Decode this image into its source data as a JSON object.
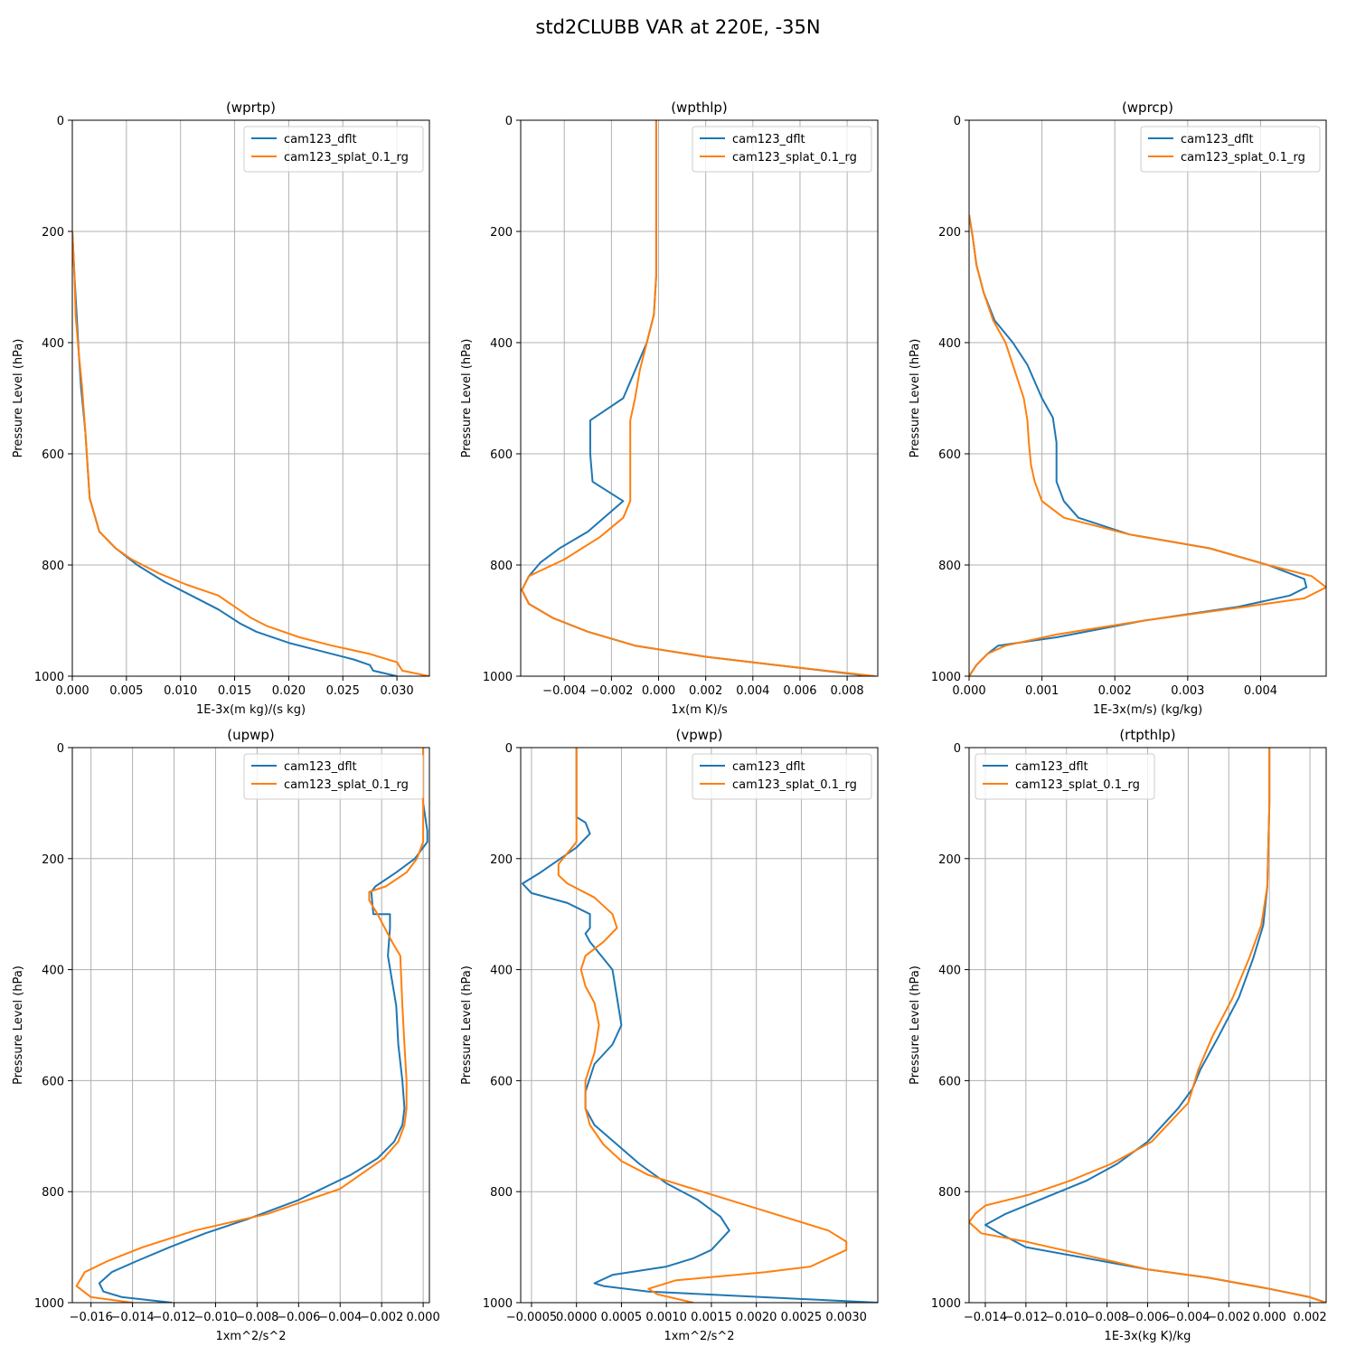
{
  "figure": {
    "title": "std2CLUBB VAR at 220E, -35N"
  },
  "series_colors": {
    "cam123_dflt": "#1f77b4",
    "cam123_splat_0.1_rg": "#ff7f0e"
  },
  "chart_data": [
    {
      "type": "line",
      "title": "(wprtp)",
      "xlabel": "1E-3x(m kg)/(s kg)",
      "ylabel": "Pressure Level (hPa)",
      "xlim": [
        0.0,
        0.033
      ],
      "ylim": [
        1000,
        0
      ],
      "xticks": [
        0.0,
        0.005,
        0.01,
        0.015,
        0.02,
        0.025,
        0.03
      ],
      "xtick_labels": [
        "0.000",
        "0.005",
        "0.010",
        "0.015",
        "0.020",
        "0.025",
        "0.030"
      ],
      "yticks": [
        0,
        200,
        400,
        600,
        800,
        1000
      ],
      "ytick_labels": [
        "0",
        "200",
        "400",
        "600",
        "800",
        "1000"
      ],
      "grid": true,
      "legend": "upper right",
      "series": [
        {
          "name": "cam123_dflt",
          "color": "#1f77b4",
          "x": [
            0.0,
            0.0002,
            0.0004,
            0.0006,
            0.0008,
            0.0012,
            0.0014,
            0.0016,
            0.0025,
            0.004,
            0.006,
            0.0085,
            0.011,
            0.0135,
            0.0155,
            0.017,
            0.02,
            0.023,
            0.026,
            0.0275,
            0.0278,
            0.03
          ],
          "y": [
            200,
            280,
            350,
            420,
            480,
            560,
            620,
            680,
            740,
            770,
            800,
            830,
            855,
            880,
            905,
            920,
            940,
            955,
            970,
            980,
            990,
            1000
          ]
        },
        {
          "name": "cam123_splat_0.1_rg",
          "color": "#ff7f0e",
          "x": [
            0.0,
            0.0002,
            0.0003,
            0.0006,
            0.0009,
            0.0012,
            0.0014,
            0.0016,
            0.0025,
            0.004,
            0.0055,
            0.008,
            0.0105,
            0.0135,
            0.015,
            0.0165,
            0.018,
            0.021,
            0.024,
            0.0275,
            0.03,
            0.0305,
            0.033
          ],
          "y": [
            200,
            280,
            350,
            420,
            480,
            560,
            620,
            680,
            740,
            770,
            790,
            815,
            835,
            855,
            875,
            895,
            910,
            930,
            945,
            960,
            975,
            990,
            1000
          ]
        }
      ]
    },
    {
      "type": "line",
      "title": "(wpthlp)",
      "xlabel": "1x(m K)/s",
      "ylabel": "Pressure Level (hPa)",
      "xlim": [
        -0.00585,
        0.0093
      ],
      "ylim": [
        1000,
        0
      ],
      "xticks": [
        -0.004,
        -0.002,
        0.0,
        0.002,
        0.004,
        0.006,
        0.008
      ],
      "xtick_labels": [
        "−0.004",
        "−0.002",
        "0.000",
        "0.002",
        "0.004",
        "0.006",
        "0.008"
      ],
      "yticks": [
        0,
        200,
        400,
        600,
        800,
        1000
      ],
      "ytick_labels": [
        "0",
        "200",
        "400",
        "600",
        "800",
        "1000"
      ],
      "grid": true,
      "legend": "upper right",
      "series": [
        {
          "name": "cam123_dflt",
          "color": "#1f77b4",
          "x": [
            -0.0001,
            -0.0001,
            -0.0001,
            -0.0001,
            -0.0002,
            -0.0005,
            -0.001,
            -0.0015,
            -0.0029,
            -0.0029,
            -0.0028,
            -0.0015,
            -0.003,
            -0.0042,
            -0.005,
            -0.0055,
            -0.0058,
            -0.0055,
            -0.0045,
            -0.003,
            -0.001,
            0.002,
            0.005,
            0.009
          ],
          "y": [
            0,
            100,
            200,
            280,
            350,
            400,
            450,
            500,
            540,
            600,
            650,
            685,
            740,
            770,
            795,
            820,
            845,
            870,
            895,
            920,
            945,
            965,
            980,
            1000
          ]
        },
        {
          "name": "cam123_splat_0.1_rg",
          "color": "#ff7f0e",
          "x": [
            -0.0001,
            -0.0001,
            -0.0001,
            -0.0001,
            -0.0002,
            -0.0005,
            -0.0008,
            -0.001,
            -0.0012,
            -0.0012,
            -0.0012,
            -0.0012,
            -0.0015,
            -0.0025,
            -0.004,
            -0.0055,
            -0.0058,
            -0.0055,
            -0.0045,
            -0.003,
            -0.001,
            0.002,
            0.005,
            0.0092
          ],
          "y": [
            0,
            100,
            200,
            280,
            350,
            400,
            450,
            500,
            540,
            600,
            650,
            685,
            715,
            750,
            790,
            820,
            845,
            870,
            895,
            920,
            945,
            965,
            980,
            1000
          ]
        }
      ]
    },
    {
      "type": "line",
      "title": "(wprcp)",
      "xlabel": "1E-3x(m/s) (kg/kg)",
      "ylabel": "Pressure Level (hPa)",
      "xlim": [
        0.0,
        0.0049
      ],
      "ylim": [
        1000,
        0
      ],
      "xticks": [
        0.0,
        0.001,
        0.002,
        0.003,
        0.004
      ],
      "xtick_labels": [
        "0.000",
        "0.001",
        "0.002",
        "0.003",
        "0.004"
      ],
      "yticks": [
        0,
        200,
        400,
        600,
        800,
        1000
      ],
      "ytick_labels": [
        "0",
        "200",
        "400",
        "600",
        "800",
        "1000"
      ],
      "grid": true,
      "legend": "upper right",
      "series": [
        {
          "name": "cam123_dflt",
          "color": "#1f77b4",
          "x": [
            0.0,
            5e-05,
            0.0001,
            0.0002,
            0.00035,
            0.0006,
            0.0008,
            0.001,
            0.00115,
            0.0012,
            0.0012,
            0.0012,
            0.0013,
            0.0015,
            0.0022,
            0.0033,
            0.0041,
            0.0046,
            0.00463,
            0.0044,
            0.0037,
            0.0024,
            0.0012,
            0.0004,
            0.00025,
            0.0001,
            0.0
          ],
          "y": [
            170,
            210,
            260,
            310,
            360,
            400,
            440,
            500,
            535,
            580,
            620,
            650,
            685,
            715,
            745,
            770,
            800,
            825,
            840,
            855,
            875,
            900,
            930,
            945,
            960,
            980,
            1000
          ]
        },
        {
          "name": "cam123_splat_0.1_rg",
          "color": "#ff7f0e",
          "x": [
            0.0,
            5e-05,
            0.0001,
            0.0002,
            0.00033,
            0.0005,
            0.0006,
            0.00075,
            0.0008,
            0.00082,
            0.00085,
            0.0009,
            0.001,
            0.0013,
            0.0022,
            0.0033,
            0.0041,
            0.0047,
            0.0049,
            0.0046,
            0.0038,
            0.0024,
            0.0012,
            0.0005,
            0.00025,
            0.0001,
            0.0
          ],
          "y": [
            170,
            210,
            260,
            310,
            360,
            400,
            440,
            500,
            540,
            580,
            620,
            650,
            685,
            715,
            745,
            770,
            800,
            820,
            840,
            860,
            875,
            900,
            925,
            945,
            960,
            980,
            1000
          ]
        }
      ]
    },
    {
      "type": "line",
      "title": "(upwp)",
      "xlabel": "1xm^2/s^2",
      "ylabel": "Pressure Level (hPa)",
      "xlim": [
        -0.0169,
        0.0003
      ],
      "ylim": [
        1000,
        0
      ],
      "xticks": [
        -0.016,
        -0.014,
        -0.012,
        -0.01,
        -0.008,
        -0.006,
        -0.004,
        -0.002,
        0.0
      ],
      "xtick_labels": [
        "−0.016",
        "−0.014",
        "−0.012",
        "−0.010",
        "−0.008",
        "−0.006",
        "−0.004",
        "−0.002",
        "0.000"
      ],
      "yticks": [
        0,
        200,
        400,
        600,
        800,
        1000
      ],
      "ytick_labels": [
        "0",
        "200",
        "400",
        "600",
        "800",
        "1000"
      ],
      "grid": true,
      "legend": "upper right",
      "series": [
        {
          "name": "cam123_dflt",
          "color": "#1f77b4",
          "x": [
            0.0,
            0.0,
            0.0002,
            0.0002,
            -0.0004,
            -0.0013,
            -0.0023,
            -0.0025,
            -0.0024,
            -0.0016,
            -0.0016,
            -0.0017,
            -0.0013,
            -0.0012,
            -0.001,
            -0.0009,
            -0.001,
            -0.0014,
            -0.0022,
            -0.0035,
            -0.006,
            -0.0085,
            -0.0105,
            -0.0122,
            -0.0138,
            -0.015,
            -0.0156,
            -0.0154,
            -0.0145,
            -0.0121
          ],
          "y": [
            0,
            100,
            150,
            170,
            200,
            225,
            250,
            260,
            300,
            300,
            325,
            375,
            465,
            535,
            600,
            650,
            680,
            710,
            740,
            770,
            815,
            850,
            875,
            900,
            925,
            945,
            965,
            980,
            990,
            1000
          ]
        },
        {
          "name": "cam123_splat_0.1_rg",
          "color": "#ff7f0e",
          "x": [
            0.0,
            0.0,
            0.0,
            -0.0003,
            -0.0008,
            -0.0018,
            -0.0026,
            -0.0026,
            -0.0022,
            -0.0015,
            -0.0011,
            -0.001,
            -0.0009,
            -0.0008,
            -0.0008,
            -0.0009,
            -0.0012,
            -0.0019,
            -0.004,
            -0.0075,
            -0.011,
            -0.0135,
            -0.0152,
            -0.0163,
            -0.0167,
            -0.016,
            -0.014
          ],
          "y": [
            0,
            100,
            170,
            200,
            225,
            250,
            260,
            275,
            300,
            350,
            375,
            465,
            535,
            600,
            650,
            680,
            710,
            740,
            795,
            840,
            870,
            900,
            925,
            945,
            970,
            990,
            1000
          ]
        }
      ]
    },
    {
      "type": "line",
      "title": "(vpwp)",
      "xlabel": "1xm^2/s^2",
      "ylabel": "Pressure Level (hPa)",
      "xlim": [
        -0.00062,
        0.00335
      ],
      "ylim": [
        1000,
        0
      ],
      "xticks": [
        -0.0005,
        0.0,
        0.0005,
        0.001,
        0.0015,
        0.002,
        0.0025,
        0.003
      ],
      "xtick_labels": [
        "−0.0005",
        "0.0000",
        "0.0005",
        "0.0010",
        "0.0015",
        "0.0020",
        "0.0025",
        "0.0030"
      ],
      "yticks": [
        0,
        200,
        400,
        600,
        800,
        1000
      ],
      "ytick_labels": [
        "0",
        "200",
        "400",
        "600",
        "800",
        "1000"
      ],
      "grid": true,
      "legend": "upper right",
      "series": [
        {
          "name": "cam123_dflt",
          "color": "#1f77b4",
          "x": [
            0.0,
            0.0,
            0.0,
            0.0001,
            0.00015,
            0.0,
            -0.0004,
            -0.0006,
            -0.0005,
            -0.0001,
            0.00015,
            0.00015,
            0.0001,
            0.00015,
            0.0004,
            0.00045,
            0.0005,
            0.0004,
            0.0002,
            0.0001,
            0.0001,
            0.0002,
            0.00045,
            0.0007,
            0.001,
            0.00135,
            0.0016,
            0.0017,
            0.0015,
            0.0013,
            0.001,
            0.0004,
            0.0002,
            0.0003,
            0.0008,
            0.00335
          ],
          "y": [
            0,
            100,
            125,
            135,
            155,
            180,
            225,
            245,
            262,
            280,
            300,
            325,
            335,
            350,
            400,
            450,
            500,
            535,
            570,
            620,
            650,
            680,
            715,
            750,
            785,
            815,
            845,
            870,
            905,
            920,
            935,
            950,
            965,
            970,
            980,
            1000
          ]
        },
        {
          "name": "cam123_splat_0.1_rg",
          "color": "#ff7f0e",
          "x": [
            0.0,
            0.0,
            0.0,
            0.0,
            -0.0002,
            -0.0002,
            -0.0001,
            0.0002,
            0.0004,
            0.00045,
            0.0003,
            0.0001,
            5e-05,
            0.0001,
            0.0002,
            0.00025,
            0.0002,
            0.0001,
            0.0001,
            0.00015,
            0.0003,
            0.0005,
            0.0008,
            0.0015,
            0.0022,
            0.0028,
            0.003,
            0.003,
            0.0026,
            0.0021,
            0.0011,
            0.0008,
            0.0009,
            0.0013
          ],
          "y": [
            0,
            100,
            120,
            170,
            210,
            230,
            245,
            270,
            300,
            325,
            350,
            375,
            400,
            430,
            460,
            500,
            550,
            600,
            650,
            680,
            715,
            745,
            770,
            805,
            840,
            870,
            890,
            905,
            935,
            945,
            960,
            975,
            985,
            1000
          ]
        }
      ]
    },
    {
      "type": "line",
      "title": "(rtpthlp)",
      "xlabel": "1E-3x(kg K)/kg",
      "ylabel": "Pressure Level (hPa)",
      "xlim": [
        -0.0148,
        0.0028
      ],
      "ylim": [
        1000,
        0
      ],
      "xticks": [
        -0.014,
        -0.012,
        -0.01,
        -0.008,
        -0.006,
        -0.004,
        -0.002,
        0.0,
        0.002
      ],
      "xtick_labels": [
        "−0.014",
        "−0.012",
        "−0.010",
        "−0.008",
        "−0.006",
        "−0.004",
        "−0.002",
        "0.000",
        "0.002"
      ],
      "yticks": [
        0,
        200,
        400,
        600,
        800,
        1000
      ],
      "ytick_labels": [
        "0",
        "200",
        "400",
        "600",
        "800",
        "1000"
      ],
      "grid": true,
      "legend": "upper left",
      "series": [
        {
          "name": "cam123_dflt",
          "color": "#1f77b4",
          "x": [
            0.0,
            0.0,
            -0.0001,
            -0.0003,
            -0.0008,
            -0.0015,
            -0.0025,
            -0.0034,
            -0.0038,
            -0.0045,
            -0.006,
            -0.0075,
            -0.009,
            -0.011,
            -0.013,
            -0.014,
            -0.0133,
            -0.012,
            -0.009,
            -0.006,
            -0.003,
            0.0,
            0.002,
            0.0028
          ],
          "y": [
            0,
            100,
            250,
            320,
            380,
            450,
            520,
            580,
            615,
            650,
            710,
            750,
            780,
            810,
            840,
            860,
            875,
            900,
            920,
            940,
            955,
            975,
            990,
            1000
          ]
        },
        {
          "name": "cam123_splat_0.1_rg",
          "color": "#ff7f0e",
          "x": [
            0.0,
            0.0,
            -0.0001,
            -0.0004,
            -0.001,
            -0.0018,
            -0.0028,
            -0.0035,
            -0.004,
            -0.0058,
            -0.0078,
            -0.0098,
            -0.0118,
            -0.014,
            -0.0145,
            -0.0148,
            -0.0142,
            -0.012,
            -0.009,
            -0.006,
            -0.003,
            0.0,
            0.002,
            0.0028
          ],
          "y": [
            0,
            100,
            250,
            320,
            380,
            450,
            520,
            580,
            640,
            710,
            750,
            780,
            805,
            825,
            840,
            855,
            875,
            890,
            915,
            940,
            955,
            975,
            990,
            1000
          ]
        }
      ]
    }
  ]
}
